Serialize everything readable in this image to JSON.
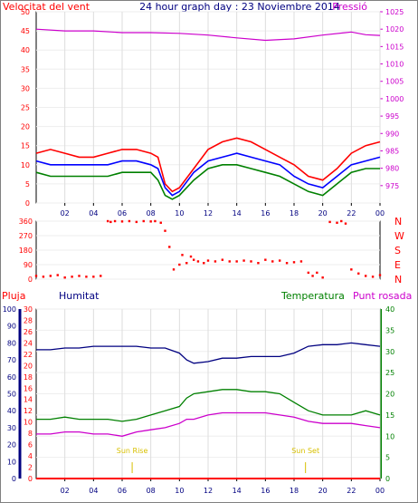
{
  "chart_data": [
    {
      "type": "line",
      "title": "24 hour graph day : 23 Noviembre 2014",
      "left_axis_label": "Velocitat del vent",
      "right_axis_label": "Pressió",
      "x_ticks": [
        "02",
        "04",
        "06",
        "08",
        "10",
        "12",
        "14",
        "16",
        "18",
        "20",
        "22",
        "00"
      ],
      "y_left": {
        "min": 0,
        "max": 50,
        "ticks": [
          0,
          5,
          10,
          15,
          20,
          25,
          30,
          35,
          40,
          45,
          50
        ]
      },
      "y_right": {
        "min": 970,
        "max": 1025,
        "ticks": [
          975,
          980,
          985,
          990,
          995,
          1000,
          1005,
          1010,
          1015,
          1020,
          1025
        ]
      },
      "colors": {
        "gust": "#ff0000",
        "wind": "#008000",
        "avg": "#0000ff",
        "pressure": "#cc00cc"
      },
      "series": [
        {
          "key": "gust",
          "x": [
            0,
            1,
            2,
            3,
            4,
            5,
            6,
            7,
            8,
            8.5,
            9,
            9.5,
            10,
            11,
            12,
            13,
            14,
            15,
            16,
            17,
            18,
            19,
            20,
            21,
            22,
            23,
            24
          ],
          "y": [
            13,
            14,
            13,
            12,
            12,
            13,
            14,
            14,
            13,
            12,
            5,
            3,
            4,
            9,
            14,
            16,
            17,
            16,
            14,
            12,
            10,
            7,
            6,
            9,
            13,
            15,
            16
          ]
        },
        {
          "key": "wind",
          "x": [
            0,
            1,
            2,
            3,
            4,
            5,
            6,
            7,
            8,
            8.5,
            9,
            9.5,
            10,
            11,
            12,
            13,
            14,
            15,
            16,
            17,
            18,
            19,
            20,
            21,
            22,
            23,
            24
          ],
          "y": [
            8,
            7,
            7,
            7,
            7,
            7,
            8,
            8,
            8,
            6,
            2,
            1,
            2,
            6,
            9,
            10,
            10,
            9,
            8,
            7,
            5,
            3,
            2,
            5,
            8,
            9,
            9
          ]
        },
        {
          "key": "avg",
          "x": [
            0,
            1,
            2,
            3,
            4,
            5,
            6,
            7,
            8,
            8.5,
            9,
            9.5,
            10,
            11,
            12,
            13,
            14,
            15,
            16,
            17,
            18,
            19,
            20,
            21,
            22,
            23,
            24
          ],
          "y": [
            11,
            10,
            10,
            10,
            10,
            10,
            11,
            11,
            10,
            9,
            4,
            2,
            3,
            8,
            11,
            12,
            13,
            12,
            11,
            10,
            7,
            5,
            4,
            7,
            10,
            11,
            12
          ]
        },
        {
          "key": "pressure",
          "x": [
            0,
            2,
            4,
            6,
            8,
            10,
            12,
            14,
            16,
            18,
            20,
            22,
            23,
            24
          ],
          "y": [
            1020,
            1019.5,
            1019.5,
            1019,
            1019,
            1018.8,
            1018.3,
            1017.5,
            1016.8,
            1017.2,
            1018.3,
            1019.2,
            1018.4,
            1018.2
          ]
        }
      ]
    },
    {
      "type": "scatter",
      "y_ticks": [
        0,
        90,
        180,
        270,
        360
      ],
      "compass_labels": [
        "N",
        "W",
        "S",
        "E",
        "N"
      ],
      "x_ticks": [
        "02",
        "04",
        "06",
        "08",
        "10",
        "12",
        "14",
        "16",
        "18",
        "20",
        "22",
        "00"
      ],
      "colors": {
        "points": "#ff0000"
      },
      "series": [
        {
          "key": "direction",
          "x": [
            0,
            0.5,
            1,
            1.5,
            2,
            2.5,
            3,
            3.5,
            4,
            4.5,
            5,
            5.2,
            5.5,
            6,
            6.5,
            7,
            7.5,
            8,
            8.3,
            8.7,
            9,
            9.3,
            9.6,
            10,
            10.2,
            10.5,
            10.8,
            11,
            11.3,
            11.7,
            12,
            12.5,
            13,
            13.5,
            14,
            14.5,
            15,
            15.5,
            16,
            16.5,
            17,
            17.5,
            18,
            18.5,
            19,
            19.3,
            19.6,
            20,
            20.5,
            21,
            21.3,
            21.6,
            22,
            22.5,
            23,
            23.5,
            24
          ],
          "y": [
            20,
            15,
            20,
            25,
            10,
            15,
            20,
            15,
            15,
            20,
            360,
            355,
            360,
            358,
            360,
            355,
            360,
            358,
            360,
            350,
            300,
            200,
            60,
            90,
            150,
            100,
            140,
            120,
            110,
            100,
            115,
            110,
            120,
            110,
            110,
            115,
            110,
            100,
            120,
            110,
            115,
            100,
            105,
            110,
            40,
            20,
            40,
            10,
            355,
            350,
            360,
            345,
            60,
            35,
            20,
            15,
            25
          ]
        }
      ]
    },
    {
      "type": "line",
      "series_labels": [
        "Pluja",
        "Humitat",
        "Temperatura",
        "Punt rosada"
      ],
      "annotations": [
        "Sun Rise",
        "Sun Set"
      ],
      "x_ticks": [
        "02",
        "04",
        "06",
        "08",
        "10",
        "12",
        "14",
        "16",
        "18",
        "20",
        "22",
        "00"
      ],
      "y_rain": {
        "min": 0,
        "max": 30,
        "ticks": [
          0,
          2,
          4,
          6,
          8,
          10,
          12,
          14,
          16,
          18,
          20,
          22,
          24,
          26,
          28,
          30
        ]
      },
      "y_humidity": {
        "min": 0,
        "max": 100,
        "ticks": [
          0,
          10,
          20,
          30,
          40,
          50,
          60,
          70,
          80,
          90,
          100
        ]
      },
      "y_temp": {
        "min": 0,
        "max": 40,
        "ticks": [
          0,
          5,
          10,
          15,
          20,
          25,
          30,
          35,
          40
        ]
      },
      "colors": {
        "rain": "#ff0000",
        "humidity": "#000080",
        "temperature": "#008000",
        "dewpoint": "#cc00cc",
        "sun": "#d8c000"
      },
      "sunrise_hour": 6.7,
      "sunset_hour": 18.8,
      "series": [
        {
          "key": "rain",
          "x": [
            0,
            24
          ],
          "y": [
            0,
            0
          ]
        },
        {
          "key": "humidity",
          "x": [
            0,
            1,
            2,
            3,
            4,
            5,
            6,
            7,
            8,
            9,
            10,
            10.5,
            11,
            12,
            13,
            14,
            15,
            16,
            17,
            18,
            19,
            20,
            21,
            22,
            23,
            24
          ],
          "y": [
            76,
            76,
            77,
            77,
            78,
            78,
            78,
            78,
            77,
            77,
            74,
            70,
            68,
            69,
            71,
            71,
            72,
            72,
            72,
            74,
            78,
            79,
            79,
            80,
            79,
            78
          ]
        },
        {
          "key": "temperature",
          "x": [
            0,
            1,
            2,
            3,
            4,
            5,
            6,
            7,
            8,
            9,
            10,
            10.5,
            11,
            12,
            13,
            14,
            15,
            16,
            17,
            18,
            19,
            20,
            21,
            22,
            23,
            24
          ],
          "y": [
            14,
            14,
            14.5,
            14,
            14,
            14,
            13.5,
            14,
            15,
            16,
            17,
            19,
            20,
            20.5,
            21,
            21,
            20.5,
            20.5,
            20,
            18,
            16,
            15,
            15,
            15,
            16,
            15
          ]
        },
        {
          "key": "dewpoint",
          "x": [
            0,
            1,
            2,
            3,
            4,
            5,
            6,
            7,
            8,
            9,
            10,
            10.5,
            11,
            12,
            13,
            14,
            15,
            16,
            17,
            18,
            19,
            20,
            21,
            22,
            23,
            24
          ],
          "y": [
            10.5,
            10.5,
            11,
            11,
            10.5,
            10.5,
            10,
            11,
            11.5,
            12,
            13,
            14,
            14,
            15,
            15.5,
            15.5,
            15.5,
            15.5,
            15,
            14.5,
            13.5,
            13,
            13,
            13,
            12.5,
            12
          ]
        }
      ]
    }
  ]
}
